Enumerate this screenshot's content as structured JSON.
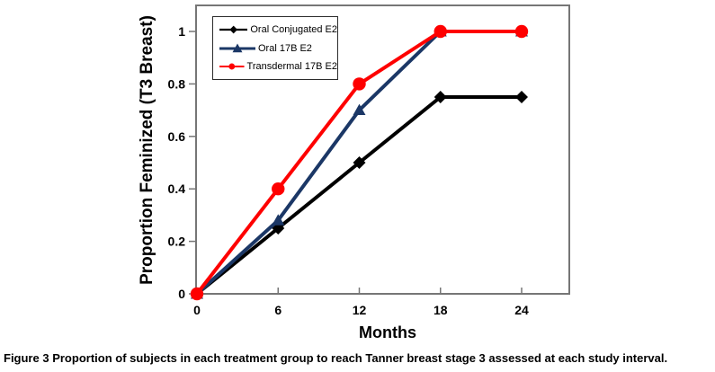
{
  "figure": {
    "caption_label": "Figure 3",
    "caption_text": "Proportion of subjects in each treatment group to reach Tanner breast stage 3 assessed at each study interval."
  },
  "chart_data": {
    "type": "line",
    "title": "",
    "xlabel": "Months",
    "ylabel": "Proportion Feminized (T3 Breast)",
    "x": [
      0,
      6,
      12,
      18,
      24
    ],
    "x_ticks": [
      0,
      6,
      12,
      18,
      24
    ],
    "y_ticks": [
      0,
      0.2,
      0.4,
      0.6,
      0.8,
      1
    ],
    "xlim": [
      0,
      27.5
    ],
    "ylim": [
      0,
      1.1
    ],
    "grid": false,
    "legend_position": "top-left-inside",
    "axis_color": "#767676",
    "series": [
      {
        "name": "Oral Conjugated E2",
        "color": "#000000",
        "marker": "diamond",
        "values": [
          0,
          0.25,
          0.5,
          0.75,
          0.75
        ]
      },
      {
        "name": "Oral 17B E2",
        "color": "#1B3766",
        "marker": "triangle",
        "values": [
          0,
          0.28,
          0.7,
          1,
          1
        ]
      },
      {
        "name": "Transdermal 17B E2",
        "color": "#FE0000",
        "marker": "circle",
        "values": [
          0,
          0.4,
          0.8,
          1,
          1
        ]
      }
    ]
  }
}
